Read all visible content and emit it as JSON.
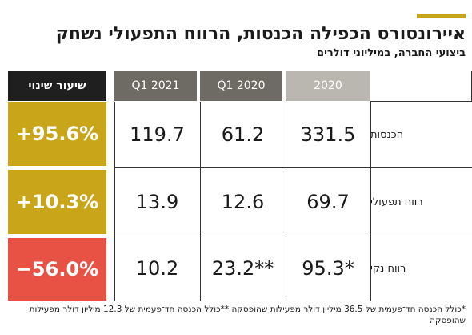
{
  "colors": {
    "accent": "#c9a519",
    "positive": "#c9a519",
    "negative": "#e85244",
    "header_black": "#1f1f1f",
    "header_dark": "#6e6b64",
    "header_light": "#b9b7b0"
  },
  "chart_data": {
    "type": "table",
    "title": "איירונסורס הכפילה הכנסות, הרווח התפעולי נשחק",
    "subtitle": "ביצועי החברה, במיליוני דולרים",
    "columns": [
      "2020",
      "Q1 2020",
      "Q1 2021",
      "שיעור שינוי"
    ],
    "rows": [
      {
        "label": "הכנסות",
        "y2020": "331.5",
        "q1_2020": "61.2",
        "q1_2021": "119.7",
        "change": "+95.6%",
        "change_value": 95.6
      },
      {
        "label": "רווח תפעולי",
        "y2020": "69.7",
        "q1_2020": "12.6",
        "q1_2021": "13.9",
        "change": "+10.3%",
        "change_value": 10.3
      },
      {
        "label": "רווח נקי",
        "y2020": "95.3*",
        "q1_2020": "23.2**",
        "q1_2021": "10.2",
        "change": "−56.0%",
        "change_value": -56.0
      }
    ],
    "footnote": "*כולל הכנסה חד־פעמית של 36.5 מיליון דולר מפעילות שהופסקה **כולל הכנסה חד־פעמית של 12.3 מיליון דולר מפעילות שהופסקה"
  }
}
